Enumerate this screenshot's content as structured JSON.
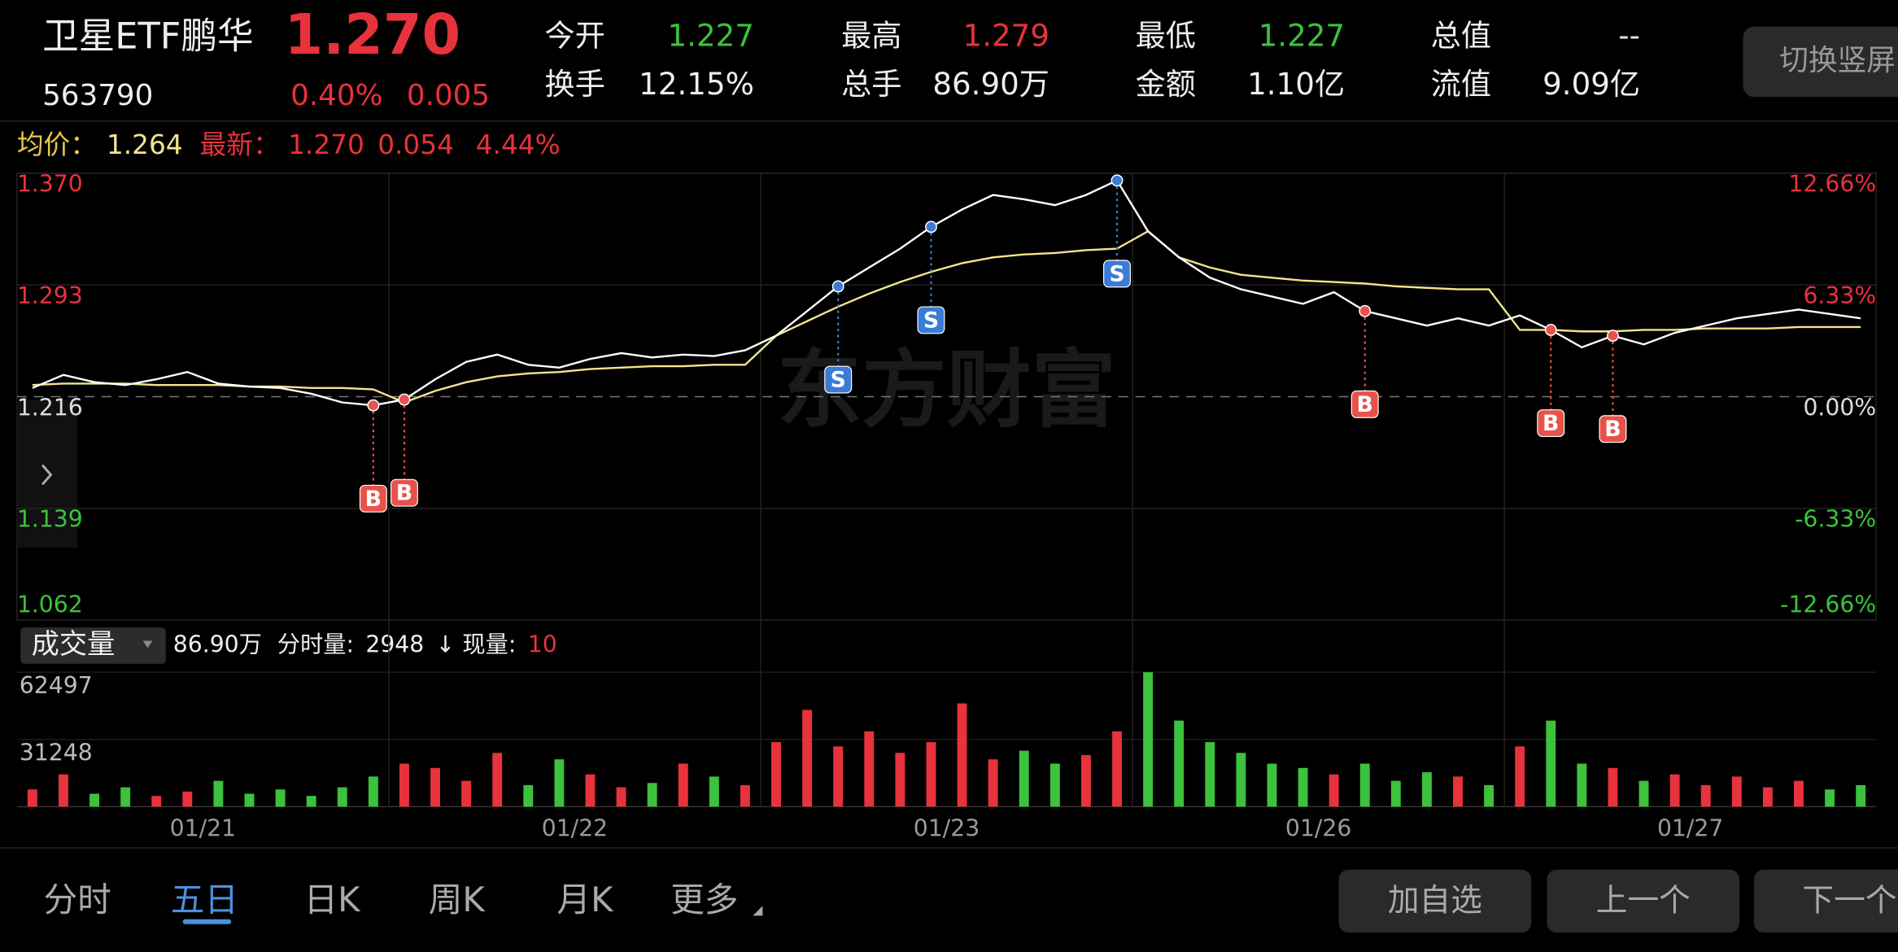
{
  "header": {
    "name": "卫星ETF鹏华",
    "price": "1.270",
    "code": "563790",
    "change_pct": "0.40%",
    "change": "0.005",
    "switch_button": "切换竖屏"
  },
  "stats": [
    {
      "label": "今开",
      "value": "1.227",
      "color": "#3cc23c"
    },
    {
      "label": "最高",
      "value": "1.279",
      "color": "#e8323c"
    },
    {
      "label": "最低",
      "value": "1.227",
      "color": "#3cc23c"
    },
    {
      "label": "总值",
      "value": "--",
      "color": "#dddddd"
    },
    {
      "label": "换手",
      "value": "12.15%",
      "color": "#eeeeee"
    },
    {
      "label": "总手",
      "value": "86.90万",
      "color": "#eeeeee"
    },
    {
      "label": "金额",
      "value": "1.10亿",
      "color": "#eeeeee"
    },
    {
      "label": "流值",
      "value": "9.09亿",
      "color": "#eeeeee"
    }
  ],
  "info_bar": {
    "avg_label": "均价：",
    "avg": "1.264",
    "latest_label": "最新：",
    "latest": "1.270",
    "diff": "0.054",
    "amplitude": "4.44%"
  },
  "chart_data": {
    "type": "line",
    "watermark": "东方财富",
    "dates": [
      "01/21",
      "01/22",
      "01/23",
      "01/26",
      "01/27"
    ],
    "price": [
      1.222,
      1.231,
      1.226,
      1.224,
      1.228,
      1.233,
      1.225,
      1.223,
      1.222,
      1.218,
      1.212,
      1.21,
      1.214,
      1.228,
      1.24,
      1.245,
      1.238,
      1.236,
      1.242,
      1.246,
      1.243,
      1.245,
      1.244,
      1.248,
      1.258,
      1.275,
      1.292,
      1.305,
      1.318,
      1.333,
      1.345,
      1.355,
      1.352,
      1.348,
      1.355,
      1.365,
      1.33,
      1.312,
      1.298,
      1.29,
      1.285,
      1.28,
      1.288,
      1.275,
      1.27,
      1.265,
      1.27,
      1.265,
      1.272,
      1.262,
      1.25,
      1.258,
      1.252,
      1.26,
      1.265,
      1.27,
      1.273,
      1.276,
      1.273,
      1.27
    ],
    "avg_price": [
      1.224,
      1.225,
      1.225,
      1.225,
      1.224,
      1.224,
      1.224,
      1.223,
      1.223,
      1.222,
      1.222,
      1.221,
      1.212,
      1.22,
      1.226,
      1.23,
      1.232,
      1.233,
      1.235,
      1.236,
      1.237,
      1.237,
      1.238,
      1.238,
      1.258,
      1.268,
      1.278,
      1.287,
      1.295,
      1.302,
      1.308,
      1.312,
      1.314,
      1.315,
      1.317,
      1.318,
      1.33,
      1.312,
      1.305,
      1.3,
      1.298,
      1.296,
      1.295,
      1.294,
      1.292,
      1.291,
      1.29,
      1.29,
      1.262,
      1.262,
      1.261,
      1.261,
      1.262,
      1.262,
      1.263,
      1.263,
      1.263,
      1.264,
      1.264,
      1.264
    ],
    "price_color": "#ffffff",
    "avg_color": "#f3e58a",
    "ylim": [
      1.062,
      1.37
    ],
    "yticks": [
      {
        "value": 1.37,
        "label": "1.370"
      },
      {
        "value": 1.293,
        "label": "1.293"
      },
      {
        "value": 1.216,
        "label": "1.216"
      },
      {
        "value": 1.139,
        "label": "1.139"
      },
      {
        "value": 1.062,
        "label": "1.062"
      }
    ],
    "y2lim": [
      -12.66,
      12.66
    ],
    "y2ticks": [
      {
        "value": 12.66,
        "label": "12.66%"
      },
      {
        "value": 6.33,
        "label": "6.33%"
      },
      {
        "value": 0,
        "label": "0.00%"
      },
      {
        "value": -6.33,
        "label": "-6.33%"
      },
      {
        "value": -12.66,
        "label": "-12.66%"
      }
    ],
    "markers": [
      {
        "x": 11,
        "label": "B"
      },
      {
        "x": 12,
        "label": "B"
      },
      {
        "x": 26,
        "label": "S"
      },
      {
        "x": 29,
        "label": "S"
      },
      {
        "x": 35,
        "label": "S"
      },
      {
        "x": 43,
        "label": "B"
      },
      {
        "x": 49,
        "label": "B"
      },
      {
        "x": 51,
        "label": "B"
      }
    ],
    "volume": {
      "title": "成交量",
      "total": "86.90万",
      "tick_label": "分时量:",
      "tick_volume": "2948",
      "arrow": "↓",
      "now_label": "现量:",
      "now_volume": "10",
      "values": [
        8000,
        15000,
        6000,
        9000,
        5000,
        7000,
        12000,
        6000,
        8000,
        5000,
        9000,
        14000,
        20000,
        18000,
        12000,
        25000,
        10000,
        22000,
        15000,
        9000,
        11000,
        20000,
        14000,
        10000,
        30000,
        45000,
        28000,
        35000,
        25000,
        30000,
        48000,
        22000,
        26000,
        20000,
        24000,
        35000,
        62497,
        40000,
        30000,
        25000,
        20000,
        18000,
        15000,
        20000,
        12000,
        16000,
        14000,
        10000,
        28000,
        40000,
        20000,
        18000,
        12000,
        15000,
        10000,
        14000,
        9000,
        12000,
        8000,
        10000
      ],
      "ylim": [
        0,
        62497
      ],
      "yticks": [
        62497,
        31248
      ]
    }
  },
  "tabs": [
    {
      "label": "分时",
      "active": false
    },
    {
      "label": "五日",
      "active": true
    },
    {
      "label": "日K",
      "active": false
    },
    {
      "label": "周K",
      "active": false
    },
    {
      "label": "月K",
      "active": false
    },
    {
      "label": "更多",
      "active": false
    }
  ],
  "buttons": [
    "加自选",
    "上一个",
    "下一个"
  ]
}
